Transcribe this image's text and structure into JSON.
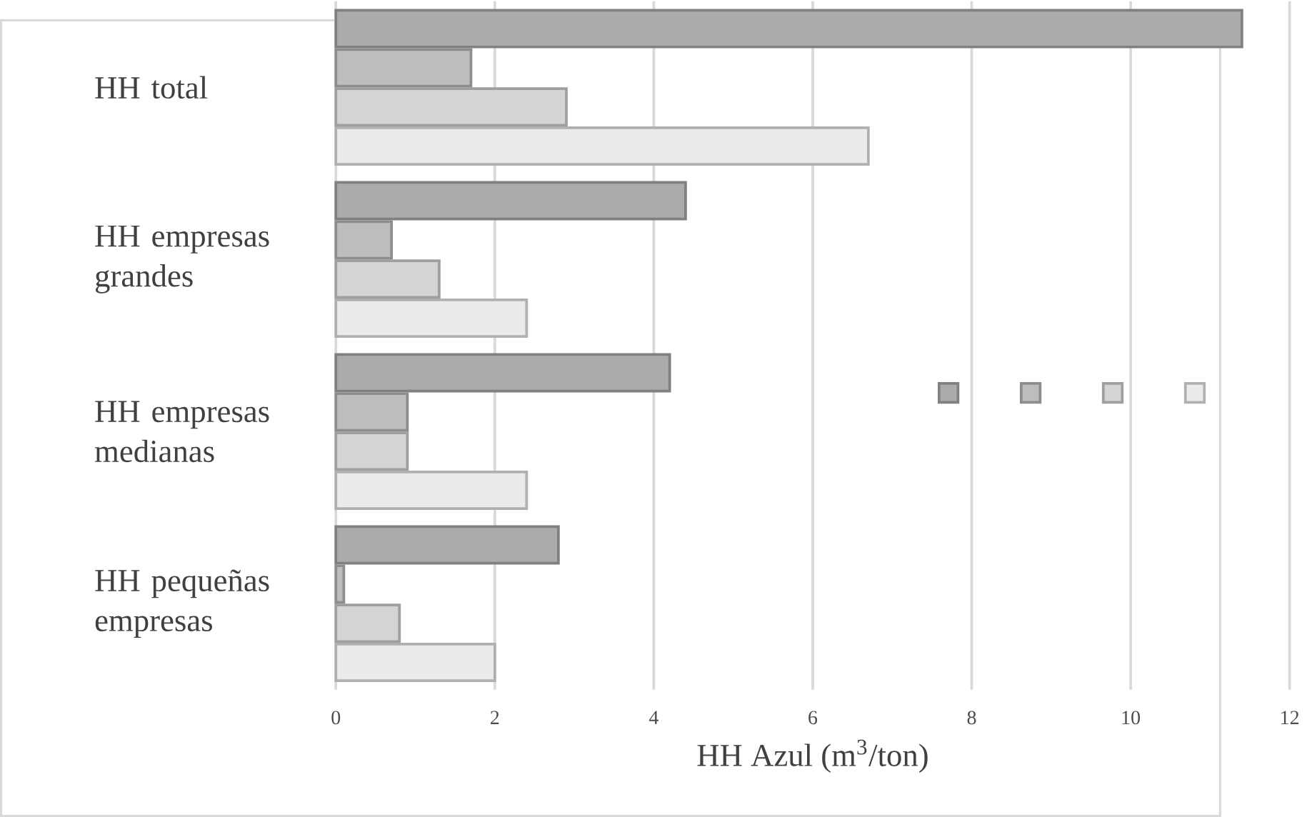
{
  "chart_data": {
    "type": "bar",
    "orientation": "horizontal",
    "xlabel": "HH Azul (m$^{3}$/ton)",
    "categories": [
      "HH total",
      "HH empresas grandes",
      "HH empresas medianas",
      "HH pequeñas empresas"
    ],
    "series": [
      {
        "color": "#ababab",
        "values": [
          11.4,
          4.4,
          4.2,
          2.8
        ]
      },
      {
        "color": "#bdbdbd",
        "values": [
          1.7,
          0.7,
          0.9,
          0.1
        ]
      },
      {
        "color": "#d4d4d4",
        "values": [
          2.9,
          1.3,
          0.9,
          0.8
        ]
      },
      {
        "color": "#ebebeb",
        "values": [
          6.7,
          2.4,
          2.4,
          2.0
        ]
      }
    ],
    "xlim": [
      0,
      12
    ],
    "xticks": [
      0,
      2,
      4,
      6,
      8,
      10,
      12
    ],
    "grid": "x"
  }
}
